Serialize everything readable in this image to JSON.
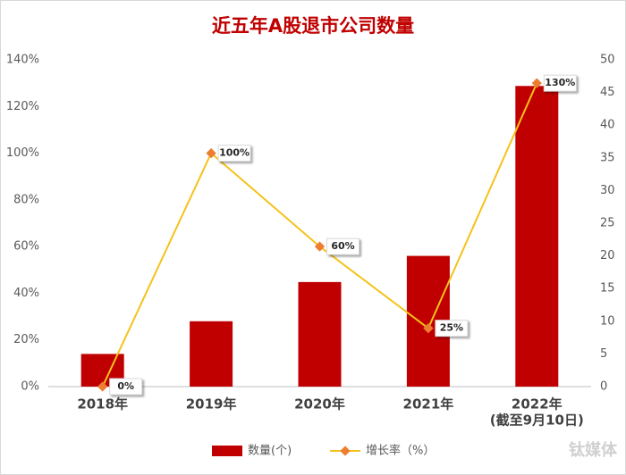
{
  "chart_data": {
    "type": "bar_line",
    "title": "近五年A股退市公司数量",
    "categories": [
      "2018年",
      "2019年",
      "2020年",
      "2021年",
      "2022年"
    ],
    "annotation": "(截至9月10日)",
    "series": [
      {
        "name": "数量(个)",
        "type": "bar",
        "axis": "y2",
        "color": "#c00000",
        "values": [
          5,
          10,
          16,
          20,
          46
        ]
      },
      {
        "name": "增长率（%）",
        "type": "line",
        "axis": "y",
        "color": "#f5c21b",
        "marker_color": "#ed7d31",
        "values": [
          0,
          100,
          60,
          25,
          130
        ],
        "value_labels": [
          "0%",
          "100%",
          "60%",
          "25%",
          "130%"
        ]
      }
    ],
    "ylim": [
      0,
      140
    ],
    "yticks": [
      {
        "value": 0,
        "label": "0%"
      },
      {
        "value": 20,
        "label": "20%"
      },
      {
        "value": 40,
        "label": "40%"
      },
      {
        "value": 60,
        "label": "60%"
      },
      {
        "value": 80,
        "label": "80%"
      },
      {
        "value": 100,
        "label": "100%"
      },
      {
        "value": 120,
        "label": "120%"
      },
      {
        "value": 140,
        "label": "140%"
      }
    ],
    "y2lim": [
      0,
      50
    ],
    "y2ticks": [
      0,
      5,
      10,
      15,
      20,
      25,
      30,
      35,
      40,
      45,
      50
    ],
    "legend": "bottom",
    "watermark": "钛媒体"
  }
}
